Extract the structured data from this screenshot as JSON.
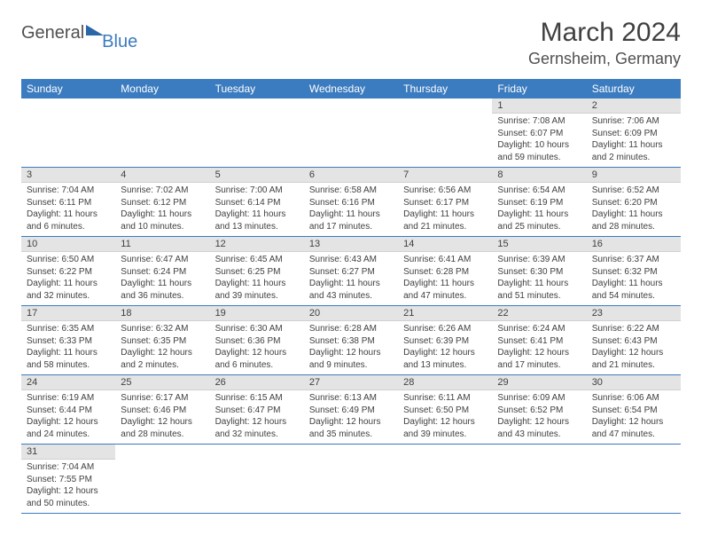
{
  "logo": {
    "part1": "General",
    "part2": "Blue"
  },
  "title": "March 2024",
  "location": "Gernsheim, Germany",
  "colors": {
    "header_bg": "#3b7bbf",
    "header_text": "#ffffff",
    "daynum_bg": "#e4e4e4",
    "row_border": "#3b7bbf",
    "body_text": "#404040"
  },
  "day_headers": [
    "Sunday",
    "Monday",
    "Tuesday",
    "Wednesday",
    "Thursday",
    "Friday",
    "Saturday"
  ],
  "weeks": [
    [
      null,
      null,
      null,
      null,
      null,
      {
        "n": "1",
        "sr": "Sunrise: 7:08 AM",
        "ss": "Sunset: 6:07 PM",
        "dl1": "Daylight: 10 hours",
        "dl2": "and 59 minutes."
      },
      {
        "n": "2",
        "sr": "Sunrise: 7:06 AM",
        "ss": "Sunset: 6:09 PM",
        "dl1": "Daylight: 11 hours",
        "dl2": "and 2 minutes."
      }
    ],
    [
      {
        "n": "3",
        "sr": "Sunrise: 7:04 AM",
        "ss": "Sunset: 6:11 PM",
        "dl1": "Daylight: 11 hours",
        "dl2": "and 6 minutes."
      },
      {
        "n": "4",
        "sr": "Sunrise: 7:02 AM",
        "ss": "Sunset: 6:12 PM",
        "dl1": "Daylight: 11 hours",
        "dl2": "and 10 minutes."
      },
      {
        "n": "5",
        "sr": "Sunrise: 7:00 AM",
        "ss": "Sunset: 6:14 PM",
        "dl1": "Daylight: 11 hours",
        "dl2": "and 13 minutes."
      },
      {
        "n": "6",
        "sr": "Sunrise: 6:58 AM",
        "ss": "Sunset: 6:16 PM",
        "dl1": "Daylight: 11 hours",
        "dl2": "and 17 minutes."
      },
      {
        "n": "7",
        "sr": "Sunrise: 6:56 AM",
        "ss": "Sunset: 6:17 PM",
        "dl1": "Daylight: 11 hours",
        "dl2": "and 21 minutes."
      },
      {
        "n": "8",
        "sr": "Sunrise: 6:54 AM",
        "ss": "Sunset: 6:19 PM",
        "dl1": "Daylight: 11 hours",
        "dl2": "and 25 minutes."
      },
      {
        "n": "9",
        "sr": "Sunrise: 6:52 AM",
        "ss": "Sunset: 6:20 PM",
        "dl1": "Daylight: 11 hours",
        "dl2": "and 28 minutes."
      }
    ],
    [
      {
        "n": "10",
        "sr": "Sunrise: 6:50 AM",
        "ss": "Sunset: 6:22 PM",
        "dl1": "Daylight: 11 hours",
        "dl2": "and 32 minutes."
      },
      {
        "n": "11",
        "sr": "Sunrise: 6:47 AM",
        "ss": "Sunset: 6:24 PM",
        "dl1": "Daylight: 11 hours",
        "dl2": "and 36 minutes."
      },
      {
        "n": "12",
        "sr": "Sunrise: 6:45 AM",
        "ss": "Sunset: 6:25 PM",
        "dl1": "Daylight: 11 hours",
        "dl2": "and 39 minutes."
      },
      {
        "n": "13",
        "sr": "Sunrise: 6:43 AM",
        "ss": "Sunset: 6:27 PM",
        "dl1": "Daylight: 11 hours",
        "dl2": "and 43 minutes."
      },
      {
        "n": "14",
        "sr": "Sunrise: 6:41 AM",
        "ss": "Sunset: 6:28 PM",
        "dl1": "Daylight: 11 hours",
        "dl2": "and 47 minutes."
      },
      {
        "n": "15",
        "sr": "Sunrise: 6:39 AM",
        "ss": "Sunset: 6:30 PM",
        "dl1": "Daylight: 11 hours",
        "dl2": "and 51 minutes."
      },
      {
        "n": "16",
        "sr": "Sunrise: 6:37 AM",
        "ss": "Sunset: 6:32 PM",
        "dl1": "Daylight: 11 hours",
        "dl2": "and 54 minutes."
      }
    ],
    [
      {
        "n": "17",
        "sr": "Sunrise: 6:35 AM",
        "ss": "Sunset: 6:33 PM",
        "dl1": "Daylight: 11 hours",
        "dl2": "and 58 minutes."
      },
      {
        "n": "18",
        "sr": "Sunrise: 6:32 AM",
        "ss": "Sunset: 6:35 PM",
        "dl1": "Daylight: 12 hours",
        "dl2": "and 2 minutes."
      },
      {
        "n": "19",
        "sr": "Sunrise: 6:30 AM",
        "ss": "Sunset: 6:36 PM",
        "dl1": "Daylight: 12 hours",
        "dl2": "and 6 minutes."
      },
      {
        "n": "20",
        "sr": "Sunrise: 6:28 AM",
        "ss": "Sunset: 6:38 PM",
        "dl1": "Daylight: 12 hours",
        "dl2": "and 9 minutes."
      },
      {
        "n": "21",
        "sr": "Sunrise: 6:26 AM",
        "ss": "Sunset: 6:39 PM",
        "dl1": "Daylight: 12 hours",
        "dl2": "and 13 minutes."
      },
      {
        "n": "22",
        "sr": "Sunrise: 6:24 AM",
        "ss": "Sunset: 6:41 PM",
        "dl1": "Daylight: 12 hours",
        "dl2": "and 17 minutes."
      },
      {
        "n": "23",
        "sr": "Sunrise: 6:22 AM",
        "ss": "Sunset: 6:43 PM",
        "dl1": "Daylight: 12 hours",
        "dl2": "and 21 minutes."
      }
    ],
    [
      {
        "n": "24",
        "sr": "Sunrise: 6:19 AM",
        "ss": "Sunset: 6:44 PM",
        "dl1": "Daylight: 12 hours",
        "dl2": "and 24 minutes."
      },
      {
        "n": "25",
        "sr": "Sunrise: 6:17 AM",
        "ss": "Sunset: 6:46 PM",
        "dl1": "Daylight: 12 hours",
        "dl2": "and 28 minutes."
      },
      {
        "n": "26",
        "sr": "Sunrise: 6:15 AM",
        "ss": "Sunset: 6:47 PM",
        "dl1": "Daylight: 12 hours",
        "dl2": "and 32 minutes."
      },
      {
        "n": "27",
        "sr": "Sunrise: 6:13 AM",
        "ss": "Sunset: 6:49 PM",
        "dl1": "Daylight: 12 hours",
        "dl2": "and 35 minutes."
      },
      {
        "n": "28",
        "sr": "Sunrise: 6:11 AM",
        "ss": "Sunset: 6:50 PM",
        "dl1": "Daylight: 12 hours",
        "dl2": "and 39 minutes."
      },
      {
        "n": "29",
        "sr": "Sunrise: 6:09 AM",
        "ss": "Sunset: 6:52 PM",
        "dl1": "Daylight: 12 hours",
        "dl2": "and 43 minutes."
      },
      {
        "n": "30",
        "sr": "Sunrise: 6:06 AM",
        "ss": "Sunset: 6:54 PM",
        "dl1": "Daylight: 12 hours",
        "dl2": "and 47 minutes."
      }
    ],
    [
      {
        "n": "31",
        "sr": "Sunrise: 7:04 AM",
        "ss": "Sunset: 7:55 PM",
        "dl1": "Daylight: 12 hours",
        "dl2": "and 50 minutes."
      },
      null,
      null,
      null,
      null,
      null,
      null
    ]
  ]
}
